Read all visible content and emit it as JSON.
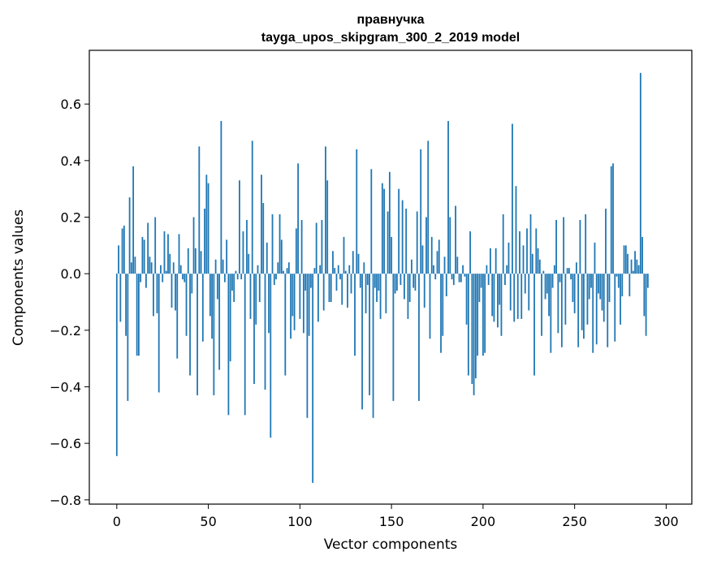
{
  "chart_data": {
    "type": "bar",
    "title_line1": "правнучка",
    "title_line2": "tayga_upos_skipgram_300_2_2019 model",
    "xlabel": "Vector components",
    "ylabel": "Components values",
    "xlim": [
      -15,
      314
    ],
    "ylim": [
      -0.815,
      0.79
    ],
    "x_ticks": [
      0,
      50,
      100,
      150,
      200,
      250,
      300
    ],
    "y_ticks": [
      -0.8,
      -0.6,
      -0.4,
      -0.2,
      0.0,
      0.2,
      0.4,
      0.6
    ],
    "y_tick_labels": [
      "−0.8",
      "−0.6",
      "−0.4",
      "−0.2",
      "0.0",
      "0.2",
      "0.4",
      "0.6"
    ],
    "bar_color": "#1f77b4",
    "grid": false,
    "values": [
      -0.645,
      0.1,
      -0.17,
      0.16,
      0.17,
      -0.22,
      -0.45,
      0.27,
      0.04,
      0.38,
      0.06,
      -0.29,
      -0.29,
      -0.03,
      0.13,
      0.12,
      -0.05,
      0.18,
      0.06,
      0.04,
      -0.15,
      0.2,
      -0.14,
      -0.42,
      0.03,
      -0.03,
      0.15,
      0.01,
      0.14,
      0.07,
      -0.12,
      0.04,
      -0.13,
      -0.3,
      0.14,
      0.03,
      -0.02,
      -0.03,
      -0.22,
      0.09,
      -0.36,
      -0.07,
      0.2,
      0.09,
      -0.43,
      0.45,
      0.08,
      -0.24,
      0.23,
      0.35,
      0.32,
      -0.15,
      -0.23,
      -0.43,
      0.05,
      -0.09,
      -0.34,
      0.54,
      0.05,
      -0.03,
      0.12,
      -0.5,
      -0.31,
      -0.06,
      -0.1,
      0.01,
      -0.02,
      0.33,
      -0.02,
      0.15,
      -0.5,
      0.19,
      0.07,
      -0.16,
      0.47,
      -0.39,
      -0.18,
      0.03,
      -0.1,
      0.35,
      0.25,
      -0.41,
      0.11,
      -0.21,
      -0.58,
      0.21,
      -0.04,
      -0.02,
      0.04,
      0.21,
      0.12,
      0.01,
      -0.36,
      0.02,
      0.04,
      -0.23,
      -0.15,
      -0.2,
      0.16,
      0.39,
      -0.16,
      0.19,
      -0.21,
      -0.06,
      -0.51,
      -0.22,
      -0.05,
      -0.74,
      0.02,
      0.18,
      -0.17,
      0.03,
      0.19,
      -0.13,
      0.45,
      0.33,
      -0.1,
      -0.1,
      0.08,
      0.02,
      -0.06,
      0.03,
      -0.02,
      -0.11,
      0.13,
      0.01,
      -0.12,
      0.03,
      -0.07,
      0.08,
      -0.29,
      0.44,
      0.07,
      -0.05,
      -0.48,
      0.04,
      -0.14,
      -0.04,
      -0.43,
      0.37,
      -0.51,
      -0.05,
      -0.1,
      -0.06,
      -0.16,
      0.32,
      0.3,
      -0.14,
      0.22,
      0.36,
      0.13,
      -0.45,
      -0.07,
      -0.06,
      0.3,
      -0.04,
      0.26,
      -0.09,
      0.23,
      -0.16,
      -0.1,
      0.05,
      -0.05,
      -0.06,
      0.22,
      -0.45,
      0.44,
      0.1,
      -0.12,
      0.2,
      0.47,
      -0.23,
      0.13,
      0.03,
      -0.02,
      0.08,
      0.12,
      -0.28,
      -0.22,
      0.06,
      -0.08,
      0.54,
      0.2,
      -0.02,
      -0.04,
      0.24,
      0.06,
      -0.03,
      -0.03,
      0.03,
      -0.01,
      -0.18,
      -0.36,
      0.15,
      -0.39,
      -0.43,
      -0.37,
      -0.29,
      -0.1,
      -0.05,
      -0.29,
      -0.28,
      0.03,
      -0.04,
      0.09,
      -0.15,
      -0.17,
      0.09,
      -0.19,
      -0.11,
      -0.22,
      0.21,
      -0.04,
      0.03,
      0.11,
      -0.13,
      0.53,
      -0.17,
      0.31,
      -0.16,
      0.15,
      -0.16,
      0.1,
      -0.07,
      0.16,
      -0.13,
      0.21,
      0.07,
      -0.36,
      0.16,
      0.09,
      0.05,
      -0.22,
      0.01,
      -0.09,
      -0.07,
      -0.15,
      -0.28,
      -0.05,
      0.03,
      0.19,
      -0.21,
      -0.03,
      -0.26,
      0.2,
      -0.18,
      0.02,
      0.02,
      -0.02,
      -0.1,
      -0.14,
      0.04,
      -0.26,
      0.19,
      -0.2,
      -0.23,
      0.21,
      -0.18,
      -0.09,
      -0.05,
      -0.28,
      0.11,
      -0.25,
      -0.07,
      -0.09,
      -0.13,
      -0.17,
      0.23,
      -0.26,
      -0.1,
      0.38,
      0.39,
      -0.24,
      -0.01,
      -0.05,
      -0.18,
      -0.08,
      0.1,
      0.1,
      0.07,
      -0.08,
      0.05,
      0.01,
      0.08,
      0.05,
      0.03,
      0.71,
      0.13,
      -0.15,
      -0.22,
      -0.05
    ]
  }
}
